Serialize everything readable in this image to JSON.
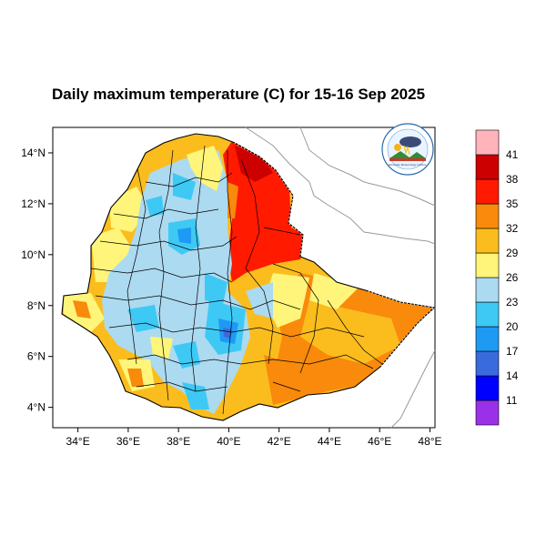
{
  "title": "Daily maximum temperature (C) for 15-16 Sep 2025",
  "map": {
    "lon_range": [
      33,
      48.2
    ],
    "lat_range": [
      3.2,
      15
    ],
    "x_ticks": [
      {
        "value": 34,
        "label": "34°E"
      },
      {
        "value": 36,
        "label": "36°E"
      },
      {
        "value": 38,
        "label": "38°E"
      },
      {
        "value": 40,
        "label": "40°E"
      },
      {
        "value": 42,
        "label": "42°E"
      },
      {
        "value": 44,
        "label": "44°E"
      },
      {
        "value": 46,
        "label": "46°E"
      },
      {
        "value": 48,
        "label": "48°E"
      }
    ],
    "y_ticks": [
      {
        "value": 14,
        "label": "14°N"
      },
      {
        "value": 12,
        "label": "12°N"
      },
      {
        "value": 10,
        "label": "10°N"
      },
      {
        "value": 8,
        "label": "8°N"
      },
      {
        "value": 6,
        "label": "6°N"
      },
      {
        "value": 4,
        "label": "4°N"
      }
    ],
    "logo": {
      "type": "meteorology-agency-logo",
      "text": "Ethiopian Meteorology Institute"
    }
  },
  "legend": {
    "colors": [
      "#9a31e8",
      "#0000ff",
      "#3a6bdc",
      "#1e9af5",
      "#3ec9f5",
      "#acdaf0",
      "#fff57a",
      "#fbbd1e",
      "#f98a0b",
      "#ff1a00",
      "#cc0000",
      "#ffb3ba"
    ],
    "labels": [
      "11",
      "14",
      "17",
      "20",
      "23",
      "26",
      "29",
      "32",
      "35",
      "38",
      "41"
    ]
  },
  "chart_data": {
    "type": "heatmap",
    "title": "Daily maximum temperature (C) for 15-16 Sep 2025",
    "variable": "Daily maximum temperature (C)",
    "period": "15-16 Sep 2025",
    "xlim": [
      33,
      48.2
    ],
    "ylim": [
      3.2,
      15
    ],
    "color_levels": [
      11,
      14,
      17,
      20,
      23,
      26,
      29,
      32,
      35,
      38,
      41
    ]
  }
}
